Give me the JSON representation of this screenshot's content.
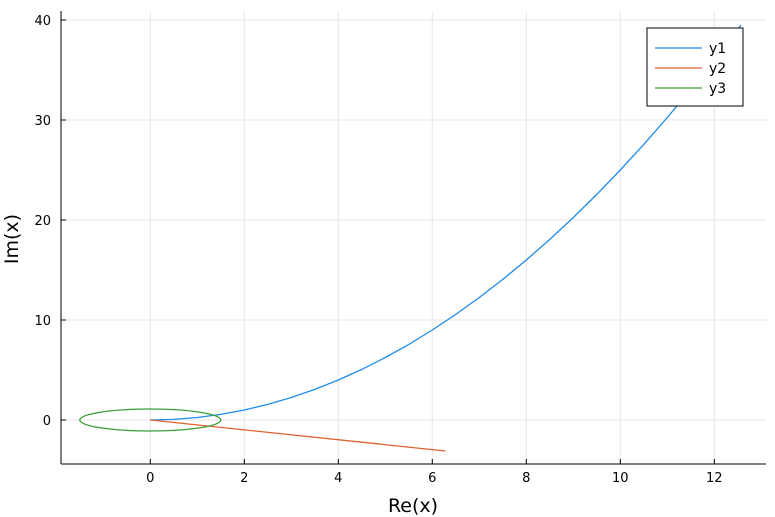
{
  "chart_data": {
    "type": "line",
    "xlabel": "Re(x)",
    "ylabel": "Im(x)",
    "xlim": [
      -1.9,
      13.1
    ],
    "ylim": [
      -4.4,
      40.9
    ],
    "xticks": [
      0,
      2,
      4,
      6,
      8,
      10,
      12
    ],
    "yticks": [
      0,
      10,
      20,
      30,
      40
    ],
    "grid": true,
    "legend_position": "top-right",
    "series": [
      {
        "name": "y1",
        "color": "#1f8ceb",
        "points": [
          [
            0,
            0
          ],
          [
            0.5,
            0.06
          ],
          [
            1,
            0.25
          ],
          [
            1.5,
            0.56
          ],
          [
            2,
            1
          ],
          [
            2.5,
            1.56
          ],
          [
            3,
            2.25
          ],
          [
            3.5,
            3.06
          ],
          [
            4,
            4
          ],
          [
            4.5,
            5.06
          ],
          [
            5,
            6.25
          ],
          [
            5.5,
            7.56
          ],
          [
            6,
            9
          ],
          [
            6.5,
            10.56
          ],
          [
            7,
            12.25
          ],
          [
            7.5,
            14.06
          ],
          [
            8,
            16
          ],
          [
            8.5,
            18.06
          ],
          [
            9,
            20.25
          ],
          [
            9.5,
            22.56
          ],
          [
            10,
            25
          ],
          [
            10.5,
            27.56
          ],
          [
            11,
            30.25
          ],
          [
            11.5,
            33.06
          ],
          [
            12,
            36
          ],
          [
            12.57,
            39.5
          ]
        ]
      },
      {
        "name": "y2",
        "color": "#e0622d",
        "points": [
          [
            0,
            0
          ],
          [
            6.28,
            -3.1
          ]
        ]
      },
      {
        "name": "y3",
        "color": "#3a9f36",
        "ellipse": {
          "cx": 0,
          "cy": 0,
          "rx": 1.5,
          "ry": 1.1
        }
      }
    ]
  }
}
